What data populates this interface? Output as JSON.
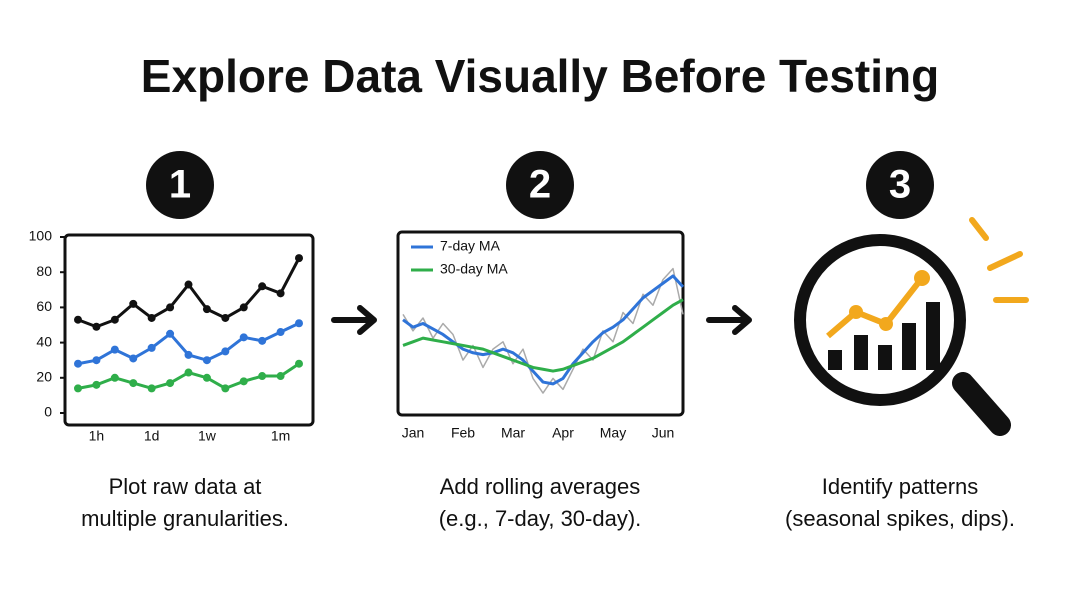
{
  "title": "Explore Data Visually Before Testing",
  "steps": [
    {
      "number": "1",
      "caption": [
        "Plot raw data at",
        "multiple granularities."
      ]
    },
    {
      "number": "2",
      "caption": [
        "Add rolling averages",
        "(e.g., 7-day, 30-day)."
      ]
    },
    {
      "number": "3",
      "caption": [
        "Identify patterns",
        "(seasonal spikes, dips)."
      ]
    }
  ],
  "chart_data": [
    {
      "type": "line",
      "categories": [
        null,
        "1h",
        null,
        null,
        "1d",
        null,
        null,
        "1w",
        null,
        null,
        null,
        "1m",
        null
      ],
      "ylim": [
        0,
        100
      ],
      "yticks": [
        0,
        20,
        40,
        60,
        80,
        100
      ],
      "markers": true,
      "series": [
        {
          "color": "#111111",
          "values": [
            53,
            49,
            53,
            62,
            54,
            60,
            73,
            59,
            54,
            60,
            72,
            68,
            88
          ]
        },
        {
          "color": "#2f74d8",
          "values": [
            28,
            30,
            36,
            31,
            37,
            45,
            33,
            30,
            35,
            43,
            41,
            46,
            51
          ]
        },
        {
          "color": "#2fae4a",
          "values": [
            14,
            16,
            20,
            17,
            14,
            17,
            23,
            20,
            14,
            18,
            21,
            21,
            28
          ]
        }
      ]
    },
    {
      "type": "line",
      "categories": [
        null,
        "Jan",
        null,
        null,
        null,
        null,
        "Feb",
        null,
        null,
        null,
        null,
        "Mar",
        null,
        null,
        null,
        null,
        "Apr",
        null,
        null,
        null,
        null,
        "May",
        null,
        null,
        null,
        null,
        "Jun",
        null,
        null
      ],
      "ylim": [
        0,
        100
      ],
      "markers": false,
      "series": [
        {
          "color": "#aaaaaa",
          "values": [
            55,
            46,
            53,
            42,
            50,
            44,
            30,
            38,
            26,
            36,
            40,
            28,
            36,
            20,
            12,
            20,
            14,
            25,
            36,
            30,
            46,
            40,
            56,
            50,
            66,
            60,
            74,
            80,
            55
          ]
        },
        {
          "name": "7-day MA",
          "color": "#2f74d8",
          "values": [
            52,
            48,
            50,
            47,
            44,
            40,
            36,
            34,
            33,
            34,
            36,
            34,
            30,
            24,
            18,
            17,
            20,
            28,
            34,
            40,
            45,
            48,
            52,
            58,
            64,
            68,
            72,
            76,
            70
          ]
        },
        {
          "name": "30-day MA",
          "color": "#2fae4a",
          "values": [
            38,
            40,
            42,
            41,
            40,
            39,
            38,
            37,
            36,
            34,
            32,
            30,
            28,
            26,
            25,
            24,
            25,
            27,
            29,
            31,
            34,
            37,
            40,
            44,
            48,
            52,
            56,
            60,
            63
          ]
        }
      ]
    }
  ]
}
